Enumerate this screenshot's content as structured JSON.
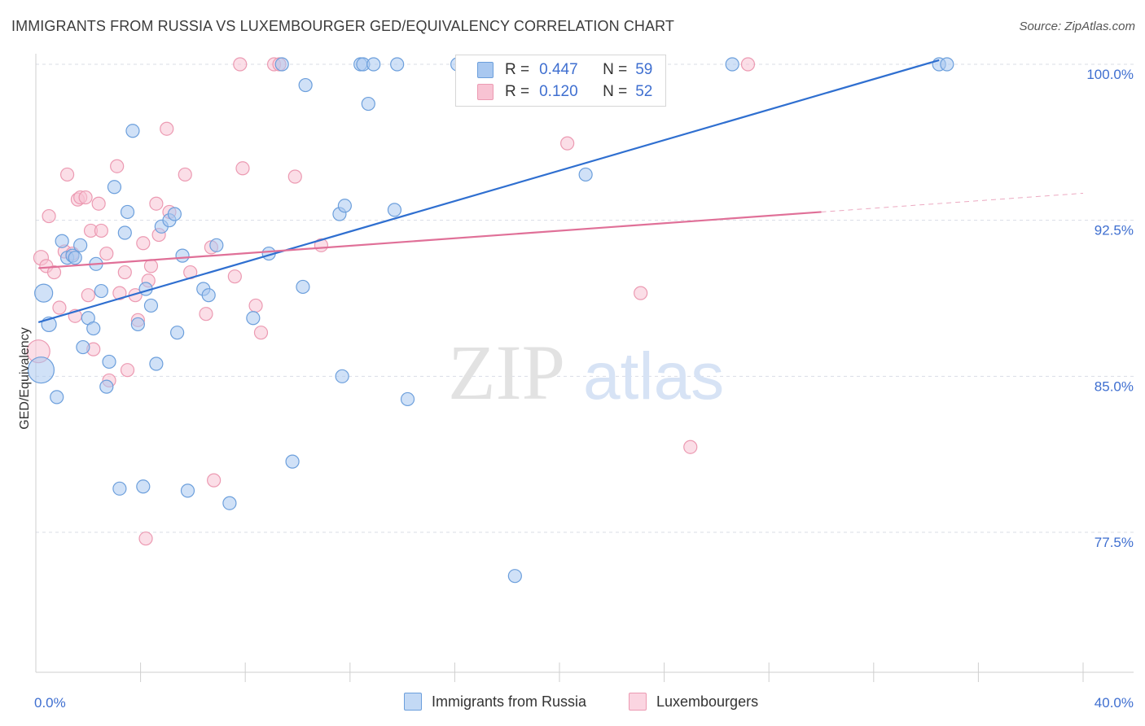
{
  "title": "IMMIGRANTS FROM RUSSIA VS LUXEMBOURGER GED/EQUIVALENCY CORRELATION CHART",
  "source": "Source: ZipAtlas.com",
  "watermark": {
    "part1": "ZIP",
    "part2": "atlas"
  },
  "legend": {
    "rows": [
      {
        "r_label": "R =",
        "r_value": "0.447",
        "n_label": "N =",
        "n_value": "59"
      },
      {
        "r_label": "R =",
        "r_value": "0.120",
        "n_label": "N =",
        "n_value": "52"
      }
    ]
  },
  "colors": {
    "blue_fill": "#a9c8f0",
    "blue_stroke": "#6c9fdc",
    "blue_line": "#2f6fd0",
    "pink_fill": "#f8c3d3",
    "pink_stroke": "#ec9ab2",
    "pink_line": "#e07098",
    "tick_label": "#3f6fd0",
    "grid": "#d9dde6"
  },
  "chart_data": {
    "type": "scatter",
    "title": "IMMIGRANTS FROM RUSSIA VS LUXEMBOURGER GED/EQUIVALENCY CORRELATION CHART",
    "xlabel": "",
    "ylabel": "GED/Equivalency",
    "xlim": [
      0,
      40
    ],
    "ylim": [
      71,
      100.5
    ],
    "x_tick_labels": [
      "0.0%",
      "40.0%"
    ],
    "y_ticks": [
      77.5,
      85.0,
      92.5,
      100.0
    ],
    "y_tick_labels": [
      "77.5%",
      "85.0%",
      "92.5%",
      "100.0%"
    ],
    "grid": true,
    "legend_position": "bottom-center",
    "series": [
      {
        "name": "Immigrants from Russia",
        "color": "blue",
        "trend": {
          "x": [
            0.1,
            34.5
          ],
          "y": [
            87.6,
            100.2
          ]
        },
        "points": [
          {
            "x": 0.3,
            "y": 89.0,
            "s": 11
          },
          {
            "x": 0.2,
            "y": 85.3,
            "s": 16
          },
          {
            "x": 0.5,
            "y": 87.5,
            "s": 9
          },
          {
            "x": 0.8,
            "y": 84.0,
            "s": 8
          },
          {
            "x": 1.0,
            "y": 91.5,
            "s": 8
          },
          {
            "x": 1.2,
            "y": 90.7,
            "s": 8
          },
          {
            "x": 1.4,
            "y": 90.8,
            "s": 8
          },
          {
            "x": 1.5,
            "y": 90.7,
            "s": 8
          },
          {
            "x": 1.7,
            "y": 91.3,
            "s": 8
          },
          {
            "x": 1.8,
            "y": 86.4,
            "s": 8
          },
          {
            "x": 2.0,
            "y": 87.8,
            "s": 8
          },
          {
            "x": 2.2,
            "y": 87.3,
            "s": 8
          },
          {
            "x": 2.3,
            "y": 90.4,
            "s": 8
          },
          {
            "x": 2.5,
            "y": 89.1,
            "s": 8
          },
          {
            "x": 2.7,
            "y": 84.5,
            "s": 8
          },
          {
            "x": 2.8,
            "y": 85.7,
            "s": 8
          },
          {
            "x": 3.0,
            "y": 94.1,
            "s": 8
          },
          {
            "x": 3.2,
            "y": 79.6,
            "s": 8
          },
          {
            "x": 3.4,
            "y": 91.9,
            "s": 8
          },
          {
            "x": 3.5,
            "y": 92.9,
            "s": 8
          },
          {
            "x": 3.7,
            "y": 96.8,
            "s": 8
          },
          {
            "x": 3.9,
            "y": 87.5,
            "s": 8
          },
          {
            "x": 4.1,
            "y": 79.7,
            "s": 8
          },
          {
            "x": 4.2,
            "y": 89.2,
            "s": 8
          },
          {
            "x": 4.4,
            "y": 88.4,
            "s": 8
          },
          {
            "x": 4.6,
            "y": 85.6,
            "s": 8
          },
          {
            "x": 4.8,
            "y": 92.2,
            "s": 8
          },
          {
            "x": 5.1,
            "y": 92.5,
            "s": 8
          },
          {
            "x": 5.3,
            "y": 92.8,
            "s": 8
          },
          {
            "x": 5.4,
            "y": 87.1,
            "s": 8
          },
          {
            "x": 5.6,
            "y": 90.8,
            "s": 8
          },
          {
            "x": 5.8,
            "y": 79.5,
            "s": 8
          },
          {
            "x": 6.4,
            "y": 89.2,
            "s": 8
          },
          {
            "x": 6.6,
            "y": 88.9,
            "s": 8
          },
          {
            "x": 6.9,
            "y": 91.3,
            "s": 8
          },
          {
            "x": 7.4,
            "y": 78.9,
            "s": 8
          },
          {
            "x": 8.3,
            "y": 87.8,
            "s": 8
          },
          {
            "x": 8.9,
            "y": 90.9,
            "s": 8
          },
          {
            "x": 9.4,
            "y": 100.0,
            "s": 8
          },
          {
            "x": 9.8,
            "y": 80.9,
            "s": 8
          },
          {
            "x": 10.2,
            "y": 89.3,
            "s": 8
          },
          {
            "x": 10.3,
            "y": 99.0,
            "s": 8
          },
          {
            "x": 11.6,
            "y": 92.8,
            "s": 8
          },
          {
            "x": 11.7,
            "y": 85.0,
            "s": 8
          },
          {
            "x": 11.8,
            "y": 93.2,
            "s": 8
          },
          {
            "x": 12.4,
            "y": 100.0,
            "s": 8
          },
          {
            "x": 12.5,
            "y": 100.0,
            "s": 8
          },
          {
            "x": 12.7,
            "y": 98.1,
            "s": 8
          },
          {
            "x": 12.9,
            "y": 100.0,
            "s": 8
          },
          {
            "x": 13.7,
            "y": 93.0,
            "s": 8
          },
          {
            "x": 13.8,
            "y": 100.0,
            "s": 8
          },
          {
            "x": 14.2,
            "y": 83.9,
            "s": 8
          },
          {
            "x": 16.1,
            "y": 100.0,
            "s": 8
          },
          {
            "x": 18.3,
            "y": 75.4,
            "s": 8
          },
          {
            "x": 21.0,
            "y": 94.7,
            "s": 8
          },
          {
            "x": 26.6,
            "y": 100.0,
            "s": 8
          },
          {
            "x": 34.5,
            "y": 100.0,
            "s": 8
          },
          {
            "x": 34.8,
            "y": 100.0,
            "s": 8
          }
        ]
      },
      {
        "name": "Luxembourgers",
        "color": "pink",
        "trend": {
          "x": [
            0.1,
            30.0
          ],
          "y": [
            90.2,
            92.9
          ]
        },
        "trend_dashed": {
          "x": [
            30.0,
            40.0
          ],
          "y": [
            92.9,
            93.8
          ]
        },
        "points": [
          {
            "x": 0.1,
            "y": 86.2,
            "s": 14
          },
          {
            "x": 0.2,
            "y": 90.7,
            "s": 9
          },
          {
            "x": 0.4,
            "y": 90.3,
            "s": 8
          },
          {
            "x": 0.5,
            "y": 92.7,
            "s": 8
          },
          {
            "x": 0.7,
            "y": 90.0,
            "s": 8
          },
          {
            "x": 0.9,
            "y": 88.3,
            "s": 8
          },
          {
            "x": 1.1,
            "y": 91.0,
            "s": 8
          },
          {
            "x": 1.2,
            "y": 94.7,
            "s": 8
          },
          {
            "x": 1.4,
            "y": 90.9,
            "s": 8
          },
          {
            "x": 1.5,
            "y": 87.9,
            "s": 8
          },
          {
            "x": 1.6,
            "y": 93.5,
            "s": 8
          },
          {
            "x": 1.7,
            "y": 93.6,
            "s": 8
          },
          {
            "x": 1.9,
            "y": 93.6,
            "s": 8
          },
          {
            "x": 2.0,
            "y": 88.9,
            "s": 8
          },
          {
            "x": 2.1,
            "y": 92.0,
            "s": 8
          },
          {
            "x": 2.2,
            "y": 86.3,
            "s": 8
          },
          {
            "x": 2.4,
            "y": 93.3,
            "s": 8
          },
          {
            "x": 2.5,
            "y": 92.0,
            "s": 8
          },
          {
            "x": 2.7,
            "y": 90.9,
            "s": 8
          },
          {
            "x": 2.8,
            "y": 84.8,
            "s": 8
          },
          {
            "x": 3.1,
            "y": 95.1,
            "s": 8
          },
          {
            "x": 3.2,
            "y": 89.0,
            "s": 8
          },
          {
            "x": 3.4,
            "y": 90.0,
            "s": 8
          },
          {
            "x": 3.5,
            "y": 85.3,
            "s": 8
          },
          {
            "x": 3.8,
            "y": 88.9,
            "s": 8
          },
          {
            "x": 3.9,
            "y": 87.7,
            "s": 8
          },
          {
            "x": 4.1,
            "y": 91.4,
            "s": 8
          },
          {
            "x": 4.2,
            "y": 77.2,
            "s": 8
          },
          {
            "x": 4.3,
            "y": 89.6,
            "s": 8
          },
          {
            "x": 4.4,
            "y": 90.3,
            "s": 8
          },
          {
            "x": 4.6,
            "y": 93.3,
            "s": 8
          },
          {
            "x": 4.7,
            "y": 91.8,
            "s": 8
          },
          {
            "x": 5.0,
            "y": 96.9,
            "s": 8
          },
          {
            "x": 5.1,
            "y": 92.9,
            "s": 8
          },
          {
            "x": 5.7,
            "y": 94.7,
            "s": 8
          },
          {
            "x": 5.9,
            "y": 90.0,
            "s": 8
          },
          {
            "x": 6.5,
            "y": 88.0,
            "s": 8
          },
          {
            "x": 6.7,
            "y": 91.2,
            "s": 8
          },
          {
            "x": 6.8,
            "y": 80.0,
            "s": 8
          },
          {
            "x": 7.6,
            "y": 89.8,
            "s": 8
          },
          {
            "x": 7.8,
            "y": 100.0,
            "s": 8
          },
          {
            "x": 7.9,
            "y": 95.0,
            "s": 8
          },
          {
            "x": 8.4,
            "y": 88.4,
            "s": 8
          },
          {
            "x": 8.6,
            "y": 87.1,
            "s": 8
          },
          {
            "x": 9.1,
            "y": 100.0,
            "s": 8
          },
          {
            "x": 9.3,
            "y": 100.0,
            "s": 8
          },
          {
            "x": 9.9,
            "y": 94.6,
            "s": 8
          },
          {
            "x": 10.9,
            "y": 91.3,
            "s": 8
          },
          {
            "x": 20.3,
            "y": 96.2,
            "s": 8
          },
          {
            "x": 23.1,
            "y": 89.0,
            "s": 8
          },
          {
            "x": 25.0,
            "y": 81.6,
            "s": 8
          },
          {
            "x": 27.2,
            "y": 100.0,
            "s": 8
          }
        ]
      }
    ]
  }
}
